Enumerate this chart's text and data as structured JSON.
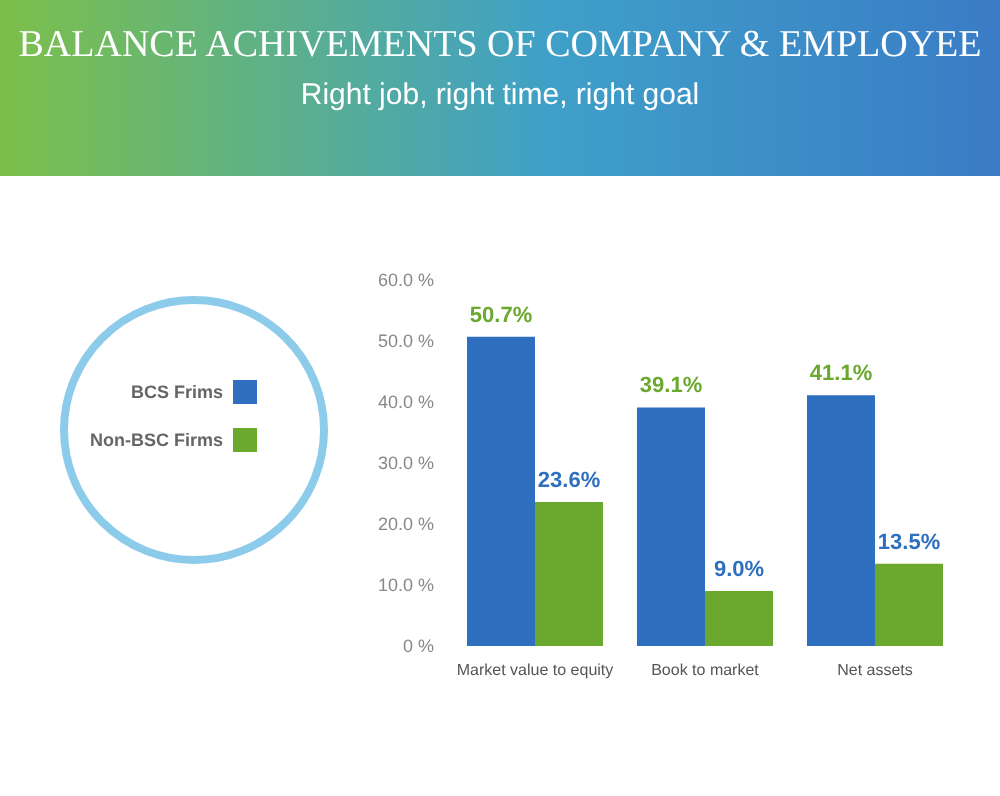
{
  "chart_data": {
    "type": "bar",
    "title": "BALANCE ACHIVEMENTS OF COMPANY & EMPLOYEE",
    "subtitle": "Right job, right time, right goal",
    "categories": [
      "Market value to equity",
      "Book to market",
      "Net assets"
    ],
    "series": [
      {
        "name": "BCS Frims",
        "color": "#2f6fbf",
        "values": [
          50.7,
          39.1,
          41.1
        ],
        "value_labels": [
          "50.7%",
          "39.1%",
          "41.1%"
        ]
      },
      {
        "name": "Non-BSC Firms",
        "color": "#6aa82e",
        "values": [
          23.6,
          9.0,
          13.5
        ],
        "value_labels": [
          "23.6%",
          "9.0%",
          "13.5%"
        ]
      }
    ],
    "ylim": [
      0,
      60
    ],
    "yticks": [
      {
        "value": 0,
        "label": "0 %"
      },
      {
        "value": 10,
        "label": "10.0 %"
      },
      {
        "value": 20,
        "label": "20.0 %"
      },
      {
        "value": 30,
        "label": "30.0 %"
      },
      {
        "value": 40,
        "label": "40.0 %"
      },
      {
        "value": 50,
        "label": "50.0 %"
      },
      {
        "value": 60,
        "label": "60.0 %"
      }
    ],
    "grid": false,
    "legend": "left"
  }
}
